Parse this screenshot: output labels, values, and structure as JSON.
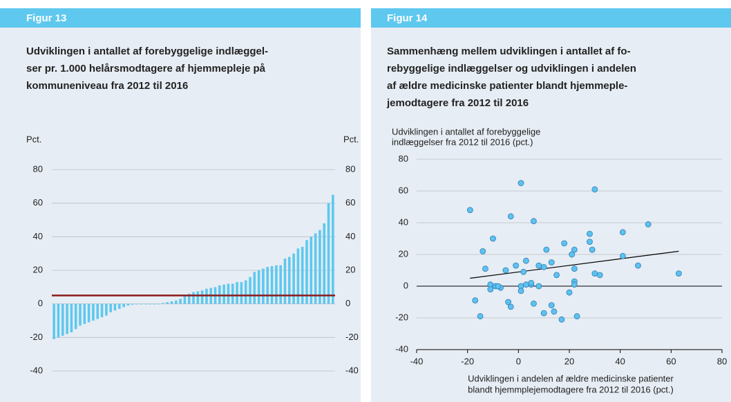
{
  "chart_data": [
    {
      "type": "bar",
      "figure_label": "Figur 13",
      "title": [
        "Udviklingen i antallet af forebyggelige indlæggel-",
        "ser pr. 1.000 helårsmodtagere af hjemmepleje på",
        "kommuneniveau fra 2012 til 2016"
      ],
      "ylabel": "Pct.",
      "y2label": "Pct.",
      "categories": [
        null,
        null,
        null,
        null,
        null,
        null,
        null,
        null,
        null,
        null,
        null,
        null,
        null,
        null,
        null,
        null,
        null,
        null,
        null,
        null,
        null,
        null,
        null,
        null,
        null,
        null,
        null,
        null,
        null,
        null,
        null,
        null,
        null,
        null,
        null,
        null,
        null,
        null,
        null,
        null,
        null,
        null,
        null,
        null,
        null,
        null,
        null,
        null,
        null,
        null,
        null,
        null,
        null,
        null,
        null,
        null,
        null,
        null,
        null,
        null,
        null,
        null,
        null,
        null,
        null
      ],
      "values": [
        -21,
        -20,
        -19,
        -18,
        -17,
        -15,
        -13,
        -12,
        -11,
        -10,
        -9,
        -8,
        -7,
        -5,
        -4,
        -3,
        -2,
        -1,
        -0.5,
        0,
        0,
        0,
        0,
        0,
        0,
        0.5,
        1,
        1.5,
        2,
        3,
        5,
        6,
        7,
        7.5,
        8,
        9,
        9.5,
        10,
        11,
        11.5,
        12,
        12,
        13,
        13,
        14,
        16,
        19,
        20,
        21,
        22,
        22.5,
        23,
        23,
        27,
        28,
        30,
        33,
        34,
        38,
        40,
        42,
        44,
        48,
        60,
        65
      ],
      "color": "#5ec8ef",
      "reference_line": {
        "value": 5,
        "color": "#8b1a1a"
      },
      "ylim": [
        -40,
        80
      ],
      "yticks": [
        -40,
        -20,
        0,
        20,
        40,
        60,
        80
      ],
      "y2lim": [
        -40,
        80
      ],
      "y2ticks": [
        -40,
        -20,
        0,
        20,
        40,
        60,
        80
      ],
      "grid": true
    },
    {
      "type": "scatter",
      "figure_label": "Figur 14",
      "title": [
        "Sammenhæng mellem udviklingen i antallet af fo-",
        "rebyggelige indlæggelser og udviklingen i andelen",
        "af ældre medicinske patienter blandt hjemmeple-",
        "jemodtagere fra 2012 til 2016"
      ],
      "ylabel": [
        "Udviklingen i antallet af forebyggelige",
        "indlæggelser fra 2012 til 2016 (pct.)"
      ],
      "xlabel": [
        "Udviklingen i andelen af ældre medicinske patienter",
        "blandt hjemmplejemodtagere fra 2012 til 2016 (pct.)"
      ],
      "x": [
        -19,
        1,
        30,
        -3,
        6,
        51,
        41,
        28,
        -10,
        18,
        28,
        29,
        11,
        -14,
        22,
        41,
        21,
        -13,
        3,
        13,
        8,
        -1,
        10,
        22,
        -5,
        2,
        15,
        30,
        32,
        47,
        63,
        -11,
        -9,
        -7,
        -11,
        1,
        5,
        5,
        8,
        1,
        22,
        22,
        20,
        -17,
        -4,
        -3,
        6,
        13,
        14,
        10,
        -15,
        17,
        23,
        3,
        -8
      ],
      "values": [
        48,
        65,
        61,
        44,
        41,
        39,
        34,
        33,
        30,
        27,
        28,
        23,
        23,
        22,
        23,
        19,
        20,
        11,
        16,
        15,
        13,
        13,
        12,
        11,
        10,
        9,
        7,
        8,
        7,
        13,
        8,
        1,
        0,
        -1,
        -2,
        0,
        1,
        2,
        0,
        -3,
        3,
        1,
        -4,
        -9,
        -10,
        -13,
        -11,
        -12,
        -16,
        -17,
        -19,
        -21,
        -19,
        1,
        0
      ],
      "color": "#5ec1ee",
      "trendline": {
        "x": [
          -19,
          63
        ],
        "values": [
          5,
          22
        ],
        "color": "#000000"
      },
      "xlim": [
        -40,
        80
      ],
      "xticks": [
        -40,
        -20,
        0,
        20,
        40,
        60,
        80
      ],
      "ylim": [
        -40,
        80
      ],
      "yticks": [
        -40,
        -20,
        0,
        20,
        40,
        60,
        80
      ],
      "grid": true
    }
  ]
}
